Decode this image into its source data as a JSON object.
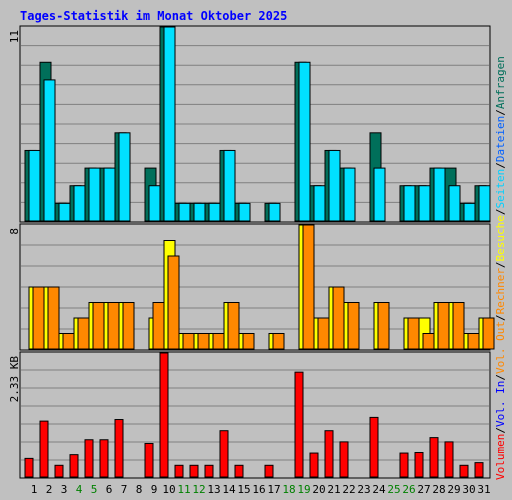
{
  "chart_data": [
    {
      "type": "bar",
      "title": "Tages-Statistik im Monat Oktober 2025",
      "categories": [
        "1",
        "2",
        "3",
        "4",
        "5",
        "6",
        "7",
        "8",
        "9",
        "10",
        "11",
        "12",
        "13",
        "14",
        "15",
        "16",
        "17",
        "18",
        "19",
        "20",
        "21",
        "22",
        "23",
        "24",
        "25",
        "26",
        "27",
        "28",
        "29",
        "30",
        "31"
      ],
      "weekend_days": [
        "4",
        "5",
        "11",
        "12",
        "18",
        "19",
        "25",
        "26"
      ],
      "ylim": [
        0,
        11
      ],
      "y_tick_label": "11",
      "series": [
        {
          "name": "Anfragen",
          "color": "#006f5a",
          "values": [
            4,
            9,
            1,
            2,
            3,
            3,
            5,
            0,
            3,
            11,
            1,
            1,
            1,
            4,
            1,
            0,
            1,
            0,
            9,
            2,
            4,
            3,
            0,
            5,
            0,
            2,
            2,
            3,
            3,
            1,
            2
          ]
        },
        {
          "name": "Dateien",
          "color": "#00e0ff",
          "values": [
            4,
            8,
            1,
            2,
            3,
            3,
            5,
            0,
            2,
            11,
            1,
            1,
            1,
            4,
            1,
            0,
            1,
            0,
            9,
            2,
            4,
            3,
            0,
            3,
            0,
            2,
            2,
            3,
            2,
            1,
            2
          ]
        }
      ]
    },
    {
      "type": "bar",
      "ylim": [
        0,
        8
      ],
      "y_tick_label": "8",
      "series": [
        {
          "name": "Seiten",
          "color": "#00e0ff",
          "values": [],
          "note": "no bars drawn"
        },
        {
          "name": "Besuche",
          "color": "#ffff00",
          "values": [
            4,
            4,
            1,
            2,
            3,
            3,
            3,
            0,
            2,
            7,
            1,
            1,
            1,
            3,
            1,
            0,
            1,
            0,
            8,
            2,
            4,
            3,
            0,
            3,
            0,
            2,
            2,
            3,
            3,
            1,
            2
          ]
        },
        {
          "name": "Rechner",
          "color": "#ff8800",
          "values": [
            4,
            4,
            1,
            2,
            3,
            3,
            3,
            0,
            3,
            6,
            1,
            1,
            1,
            3,
            1,
            0,
            1,
            0,
            8,
            2,
            4,
            3,
            0,
            3,
            0,
            2,
            1,
            3,
            3,
            1,
            2
          ]
        }
      ]
    },
    {
      "type": "bar",
      "ylim": [
        0,
        2.33
      ],
      "y_tick_label": "2.33 KB",
      "series": [
        {
          "name": "Vol. Out",
          "color": "#ff8800",
          "values": []
        },
        {
          "name": "Vol. In",
          "color": "#0000ff",
          "values": []
        },
        {
          "name": "Volumen",
          "color": "#ff0000",
          "values": [
            0.35,
            1.05,
            0.22,
            0.42,
            0.7,
            0.7,
            1.08,
            0,
            0.63,
            2.33,
            0.22,
            0.22,
            0.22,
            0.87,
            0.22,
            0,
            0.22,
            0,
            1.97,
            0.45,
            0.87,
            0.66,
            0,
            1.12,
            0,
            0.45,
            0.46,
            0.74,
            0.66,
            0.22,
            0.27
          ]
        }
      ]
    }
  ],
  "right_labels": [
    "Anfragen",
    "/",
    "Dateien",
    "/",
    "Seiten",
    "/",
    "Besuche",
    "/",
    "Rechner",
    "/",
    "Vol. Out",
    "/",
    "Vol. In",
    "/",
    "Volumen"
  ],
  "right_label_colors": [
    "#006f5a",
    "#000000",
    "#0060ff",
    "#000000",
    "#00d0ff",
    "#000000",
    "#ffff00",
    "#000000",
    "#ff8800",
    "#000000",
    "#ff8800",
    "#000000",
    "#0000ff",
    "#000000",
    "#ff0000"
  ],
  "colors": {
    "background": "#c0c0c0",
    "title": "#0000ff",
    "weekend_day": "#008000",
    "weekday": "#000000",
    "gridline": "#7f7f7f"
  }
}
